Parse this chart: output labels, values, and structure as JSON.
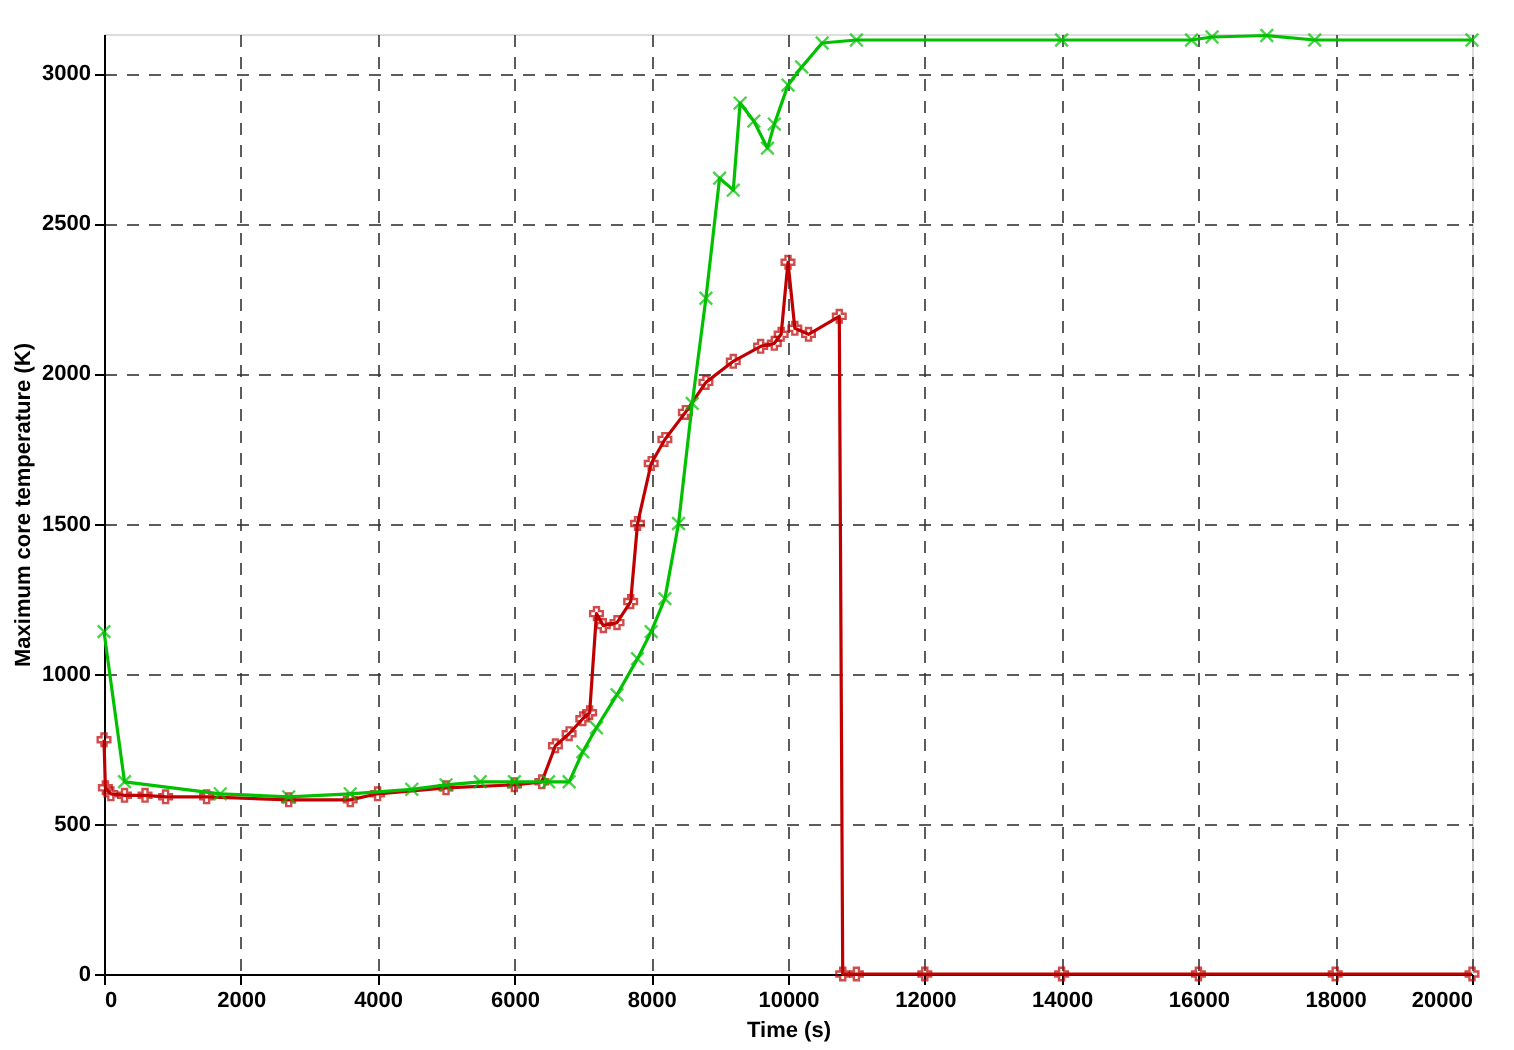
{
  "chart_data": {
    "type": "line",
    "xlabel": "Time (s)",
    "ylabel": "Maximum core temperature  (K)",
    "xlim": [
      0,
      20000
    ],
    "xticks": [
      0,
      2000,
      4000,
      6000,
      8000,
      10000,
      12000,
      14000,
      16000,
      18000,
      20000
    ],
    "ylim": [
      0,
      3130
    ],
    "yticks": [
      0,
      500,
      1000,
      1500,
      2000,
      2500,
      3000
    ],
    "grid": true,
    "line_style": "solid",
    "series": [
      {
        "color": "#c00000",
        "marker": "cross",
        "x": [
          0,
          20,
          100,
          300,
          600,
          900,
          1500,
          2700,
          3600,
          4000,
          5000,
          6000,
          6400,
          6600,
          6800,
          7000,
          7100,
          7200,
          7300,
          7500,
          7700,
          7800,
          8000,
          8200,
          8500,
          8800,
          9200,
          9600,
          9800,
          9900,
          10000,
          10100,
          10300,
          10750,
          10800,
          11000,
          12000,
          14000,
          16000,
          18000,
          20000
        ],
        "values": [
          780,
          620,
          600,
          595,
          595,
          590,
          590,
          580,
          580,
          600,
          620,
          630,
          640,
          760,
          800,
          850,
          870,
          1200,
          1160,
          1170,
          1240,
          1500,
          1700,
          1780,
          1870,
          1970,
          2040,
          2090,
          2100,
          2130,
          2370,
          2150,
          2130,
          2190,
          0,
          0,
          0,
          0,
          0,
          0,
          0
        ]
      },
      {
        "color": "#00c000",
        "marker": "x",
        "x": [
          0,
          300,
          1700,
          2700,
          3600,
          4500,
          5000,
          5500,
          6000,
          6500,
          6800,
          7000,
          7200,
          7500,
          7800,
          8000,
          8200,
          8400,
          8600,
          8800,
          9000,
          9200,
          9300,
          9500,
          9700,
          9800,
          10000,
          10200,
          10500,
          11000,
          14000,
          15900,
          16200,
          17000,
          17700,
          20000
        ],
        "values": [
          1140,
          640,
          600,
          590,
          600,
          615,
          630,
          640,
          640,
          640,
          640,
          740,
          820,
          930,
          1050,
          1140,
          1250,
          1500,
          1900,
          2250,
          2650,
          2610,
          2900,
          2840,
          2750,
          2830,
          2960,
          3020,
          3100,
          3110,
          3110,
          3110,
          3120,
          3125,
          3110,
          3110
        ]
      }
    ]
  }
}
